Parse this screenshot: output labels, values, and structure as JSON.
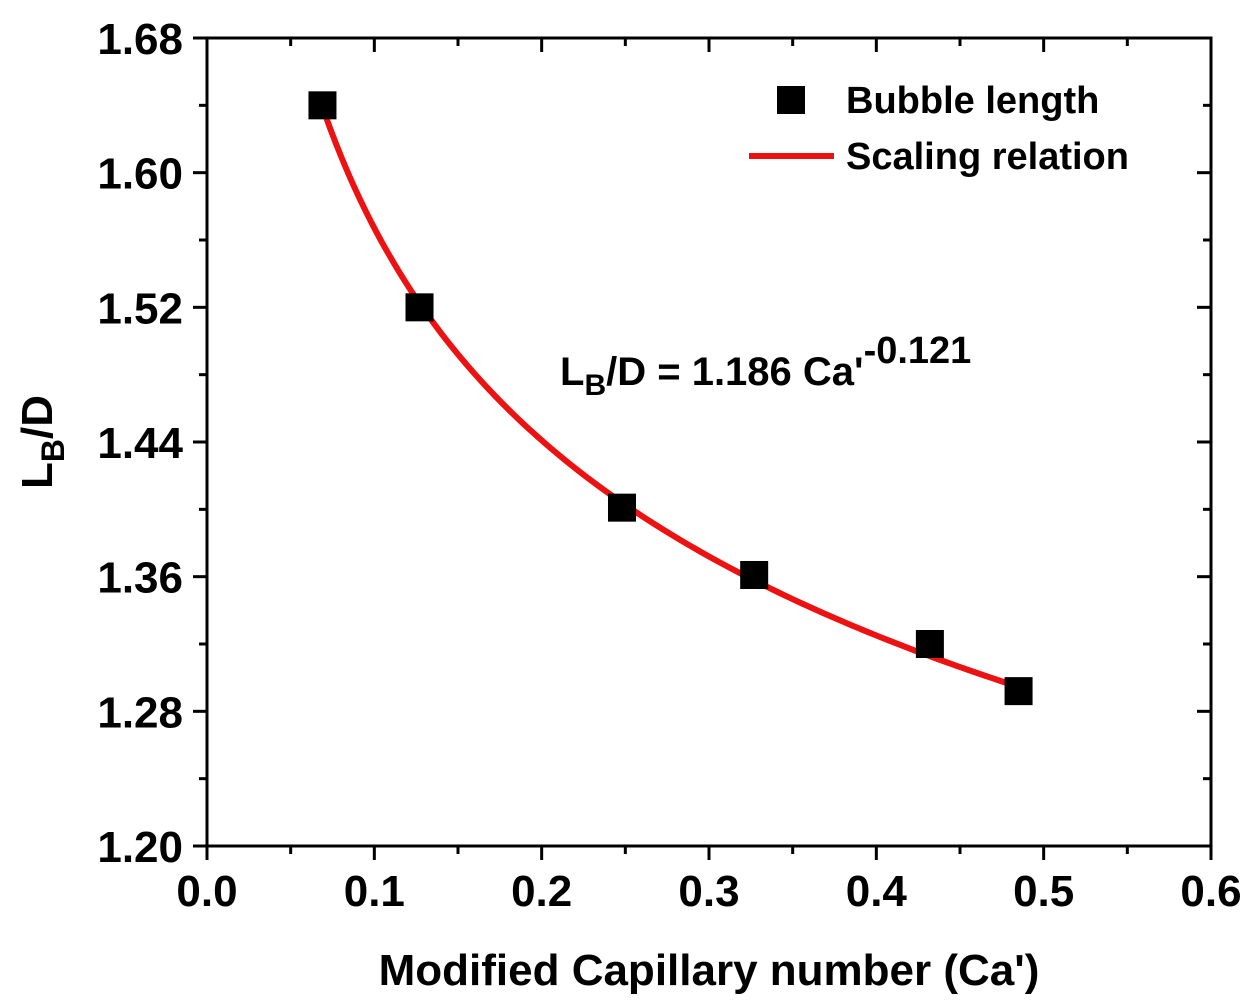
{
  "chart_data": {
    "type": "scatter",
    "xlabel": "Modified Capillary number (Ca')",
    "ylabel_main": "L",
    "ylabel_sub": "B",
    "ylabel_tail": "/D",
    "xlim": [
      0.0,
      0.6
    ],
    "ylim": [
      1.2,
      1.68
    ],
    "x_ticks": [
      "0.0",
      "0.1",
      "0.2",
      "0.3",
      "0.4",
      "0.5",
      "0.6"
    ],
    "x_tick_values": [
      0.0,
      0.1,
      0.2,
      0.3,
      0.4,
      0.5,
      0.6
    ],
    "y_ticks": [
      "1.20",
      "1.28",
      "1.36",
      "1.44",
      "1.52",
      "1.60",
      "1.68"
    ],
    "y_tick_values": [
      1.2,
      1.28,
      1.36,
      1.44,
      1.52,
      1.6,
      1.68
    ],
    "series": [
      {
        "name": "Bubble length",
        "kind": "points",
        "color": "#000000",
        "x": [
          0.069,
          0.127,
          0.248,
          0.327,
          0.432,
          0.485
        ],
        "y": [
          1.64,
          1.52,
          1.401,
          1.361,
          1.32,
          1.292
        ]
      },
      {
        "name": "Scaling relation",
        "kind": "fit",
        "color": "#ee1111",
        "coefficient": 1.186,
        "exponent": -0.121,
        "x_range": [
          0.07,
          0.486
        ]
      }
    ],
    "legend": {
      "position": "top-right",
      "entries": [
        "Bubble length",
        "Scaling relation"
      ]
    },
    "annotation": {
      "lhs_main": "L",
      "lhs_sub": "B",
      "lhs_tail": "/D = 1.186 Ca'",
      "exponent": "-0.121"
    }
  }
}
